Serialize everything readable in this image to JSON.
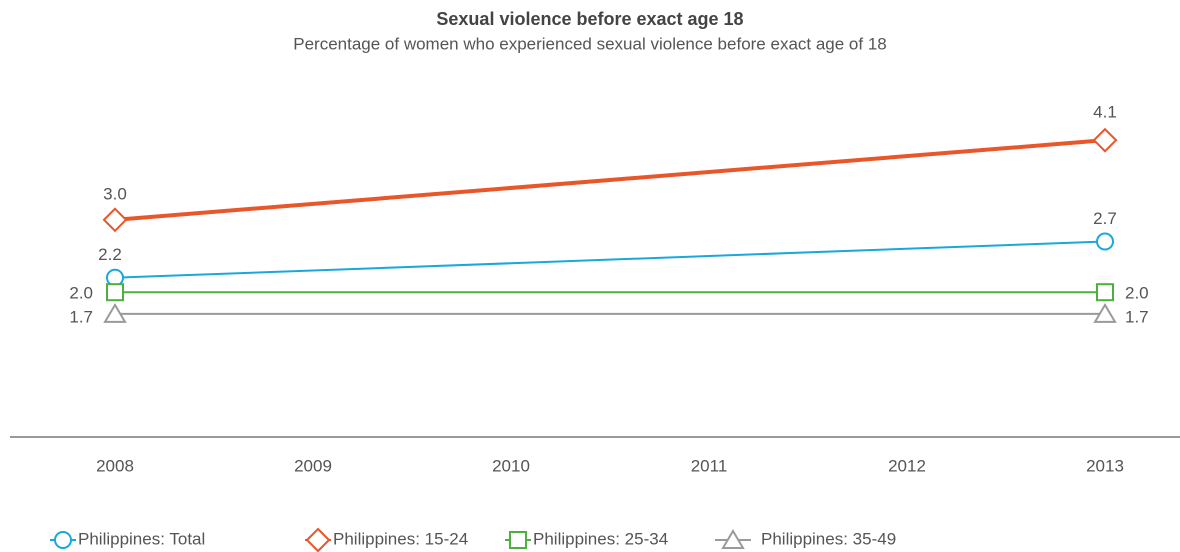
{
  "chart_data": {
    "type": "line",
    "title": "Sexual violence before exact age 18",
    "subtitle": "Percentage of women who experienced sexual violence before exact age of 18",
    "x": [
      2008,
      2013
    ],
    "xlim": [
      2008,
      2013
    ],
    "xticks": [
      2008,
      2009,
      2010,
      2011,
      2012,
      2013
    ],
    "ylim": [
      0,
      5
    ],
    "grid": false,
    "legend": "bottom",
    "series": [
      {
        "name": "Philippines: Total",
        "color": "#1aa7dc",
        "marker": "circle",
        "values": [
          2.2,
          2.7
        ],
        "value_labels": [
          "2.2",
          "2.7"
        ]
      },
      {
        "name": "Philippines: 15-24",
        "color": "#e8562a",
        "marker": "diamond",
        "values": [
          3,
          4.1
        ],
        "value_labels": [
          "3.0",
          "4.1"
        ]
      },
      {
        "name": "Philippines: 25-34",
        "color": "#4caf3e",
        "marker": "square",
        "values": [
          2,
          2
        ],
        "value_labels": [
          "2.0",
          "2.0"
        ]
      },
      {
        "name": "Philippines: 35-49",
        "color": "#9a9a9a",
        "marker": "triangle",
        "values": [
          1.7,
          1.7
        ],
        "value_labels": [
          "1.7",
          "1.7"
        ]
      }
    ]
  }
}
